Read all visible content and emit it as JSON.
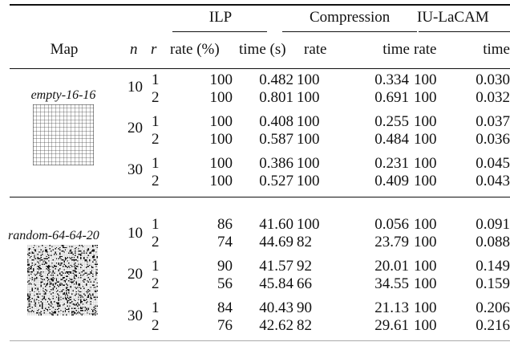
{
  "header": {
    "groups": [
      "ILP",
      "Compression",
      "IU-LaCAM"
    ],
    "columns": [
      "Map",
      "n",
      "r",
      "rate (%)",
      "time (s)",
      "rate",
      "time",
      "rate",
      "time"
    ]
  },
  "sections": [
    {
      "map": "empty-16-16",
      "map_image": "empty-16-16 grid",
      "groups": [
        {
          "n": "10",
          "rows": [
            {
              "r": "1",
              "ilp_rate": "100",
              "ilp_time": "0.482",
              "comp_rate": "100",
              "comp_time": "0.334",
              "iu_rate": "100",
              "iu_time": "0.030"
            },
            {
              "r": "2",
              "ilp_rate": "100",
              "ilp_time": "0.801",
              "comp_rate": "100",
              "comp_time": "0.691",
              "iu_rate": "100",
              "iu_time": "0.032"
            }
          ]
        },
        {
          "n": "20",
          "rows": [
            {
              "r": "1",
              "ilp_rate": "100",
              "ilp_time": "0.408",
              "comp_rate": "100",
              "comp_time": "0.255",
              "iu_rate": "100",
              "iu_time": "0.037"
            },
            {
              "r": "2",
              "ilp_rate": "100",
              "ilp_time": "0.587",
              "comp_rate": "100",
              "comp_time": "0.484",
              "iu_rate": "100",
              "iu_time": "0.036"
            }
          ]
        },
        {
          "n": "30",
          "rows": [
            {
              "r": "1",
              "ilp_rate": "100",
              "ilp_time": "0.386",
              "comp_rate": "100",
              "comp_time": "0.231",
              "iu_rate": "100",
              "iu_time": "0.045"
            },
            {
              "r": "2",
              "ilp_rate": "100",
              "ilp_time": "0.527",
              "comp_rate": "100",
              "comp_time": "0.409",
              "iu_rate": "100",
              "iu_time": "0.043"
            }
          ]
        }
      ]
    },
    {
      "map": "random-64-64-20",
      "map_image": "random-64-64-20 grid",
      "groups": [
        {
          "n": "10",
          "rows": [
            {
              "r": "1",
              "ilp_rate": "86",
              "ilp_time": "41.60",
              "comp_rate": "100",
              "comp_time": "0.056",
              "iu_rate": "100",
              "iu_time": "0.091"
            },
            {
              "r": "2",
              "ilp_rate": "74",
              "ilp_time": "44.69",
              "comp_rate": "82",
              "comp_time": "23.79",
              "iu_rate": "100",
              "iu_time": "0.088"
            }
          ]
        },
        {
          "n": "20",
          "rows": [
            {
              "r": "1",
              "ilp_rate": "90",
              "ilp_time": "41.57",
              "comp_rate": "92",
              "comp_time": "20.01",
              "iu_rate": "100",
              "iu_time": "0.149"
            },
            {
              "r": "2",
              "ilp_rate": "56",
              "ilp_time": "45.84",
              "comp_rate": "66",
              "comp_time": "34.55",
              "iu_rate": "100",
              "iu_time": "0.159"
            }
          ]
        },
        {
          "n": "30",
          "rows": [
            {
              "r": "1",
              "ilp_rate": "84",
              "ilp_time": "40.43",
              "comp_rate": "90",
              "comp_time": "21.13",
              "iu_rate": "100",
              "iu_time": "0.206"
            },
            {
              "r": "2",
              "ilp_rate": "76",
              "ilp_time": "42.62",
              "comp_rate": "82",
              "comp_time": "29.61",
              "iu_rate": "100",
              "iu_time": "0.216"
            }
          ]
        }
      ]
    }
  ]
}
